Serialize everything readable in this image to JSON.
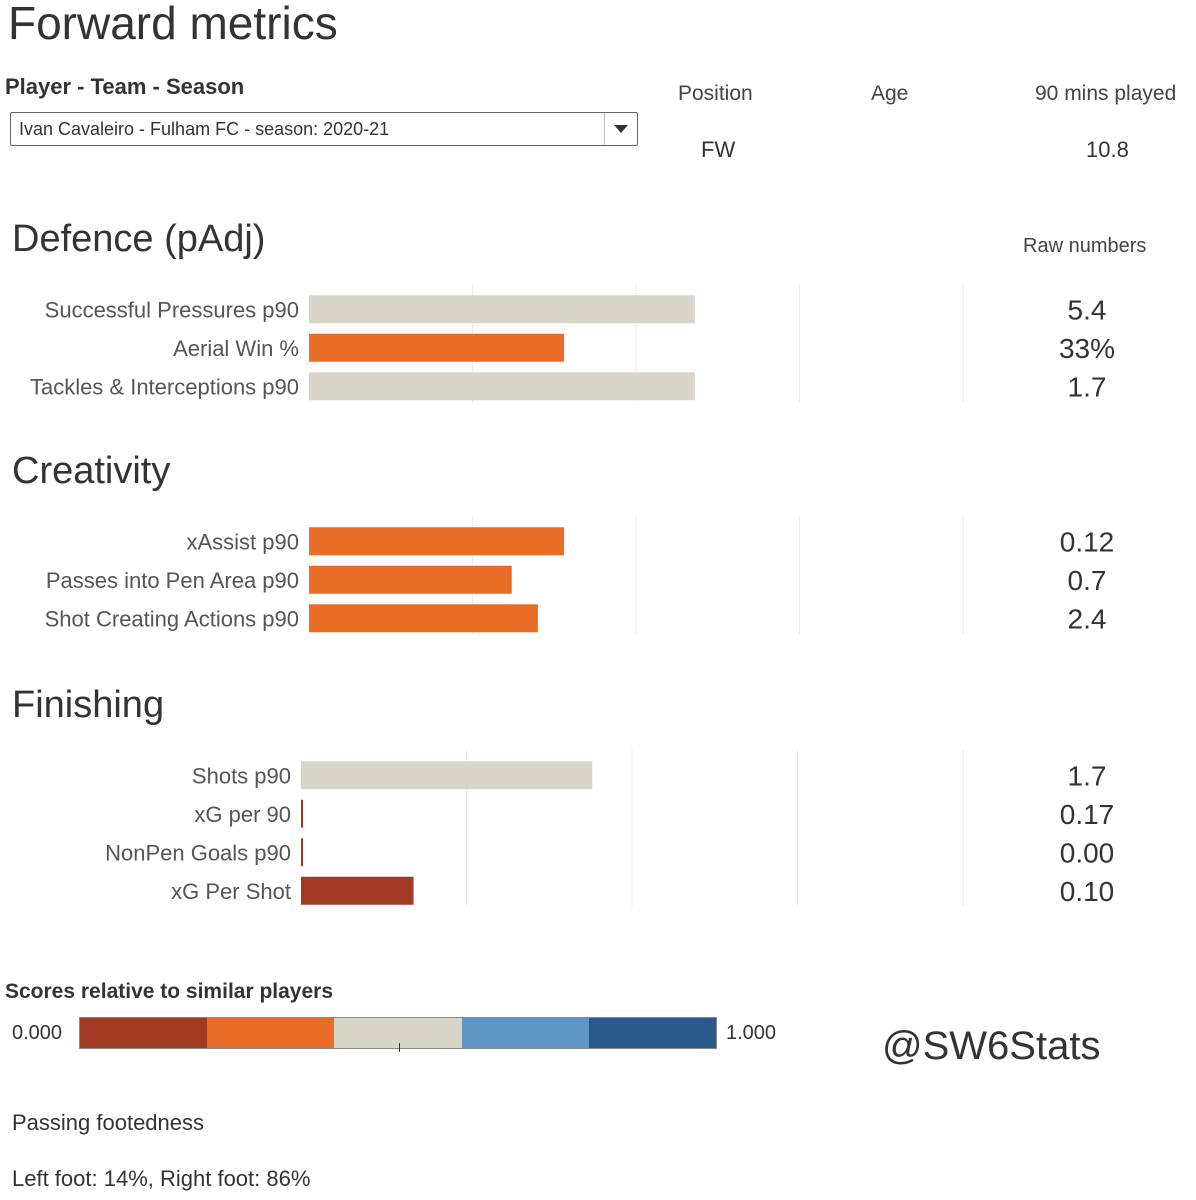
{
  "page": {
    "title": "Forward metrics",
    "filter_label": "Player - Team - Season",
    "selected_player": "Ivan Cavaleiro - Fulham FC - season: 2020-21",
    "info": {
      "position_label": "Position",
      "position_value": "FW",
      "age_label": "Age",
      "age_value": "",
      "mins_label": "90 mins played",
      "mins_value": "10.8"
    },
    "raw_numbers_label": "Raw numbers",
    "legend": {
      "title": "Scores relative to similar players",
      "min_label": "0.000",
      "max_label": "1.000",
      "colors": [
        "#a03a22",
        "#e96d26",
        "#d9d5c8",
        "#6096c4",
        "#2a5a8a"
      ]
    },
    "credit": "@SW6Stats",
    "footedness_title": "Passing footedness",
    "footedness_value": "Left foot: 14%, Right foot: 86%"
  },
  "chart_data": [
    {
      "type": "bar",
      "orientation": "horizontal",
      "title": "Defence (pAdj)",
      "xlim": [
        0,
        1
      ],
      "categories": [
        "Successful Pressures p90",
        "Aerial Win %",
        "Tackles & Interceptions p90"
      ],
      "values": [
        0.59,
        0.39,
        0.59
      ],
      "raw": [
        "5.4",
        "33%",
        "1.7"
      ],
      "colors": [
        "#d9d5c8",
        "#e96d26",
        "#d9d5c8"
      ]
    },
    {
      "type": "bar",
      "orientation": "horizontal",
      "title": "Creativity",
      "xlim": [
        0,
        1
      ],
      "categories": [
        "xAssist p90",
        "Passes into Pen Area p90",
        "Shot Creating Actions p90"
      ],
      "values": [
        0.39,
        0.31,
        0.35
      ],
      "raw": [
        "0.12",
        "0.7",
        "2.4"
      ],
      "colors": [
        "#e96d26",
        "#e96d26",
        "#e96d26"
      ]
    },
    {
      "type": "bar",
      "orientation": "horizontal",
      "title": "Finishing",
      "xlim": [
        0,
        1
      ],
      "categories": [
        "Shots p90",
        "xG per 90",
        "NonPen Goals p90",
        "xG Per Shot"
      ],
      "values": [
        0.44,
        0.0,
        0.0,
        0.17
      ],
      "raw": [
        "1.7",
        "0.17",
        "0.00",
        "0.10"
      ],
      "colors": [
        "#d9d5c8",
        "#a03a22",
        "#a03a22",
        "#a03a22"
      ]
    }
  ]
}
